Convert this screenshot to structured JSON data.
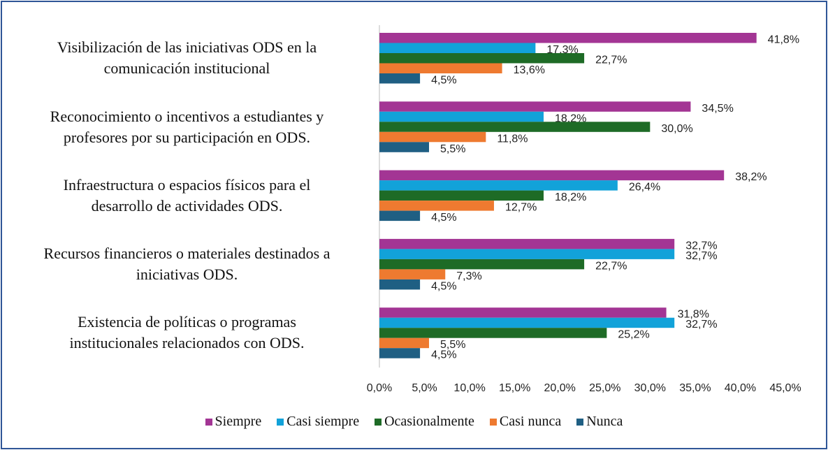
{
  "chart_data": {
    "type": "hbar",
    "categories": [
      "Visibilización de las iniciativas ODS en la\ncomunicación institucional",
      "Reconocimiento o incentivos a estudiantes y\nprofesores por su participación en ODS.",
      "Infraestructura o espacios físicos para el\ndesarrollo de actividades ODS.",
      "Recursos financieros o materiales destinados a\niniciativas ODS.",
      "Existencia de políticas o programas\ninstitucionales relacionados con ODS."
    ],
    "series": [
      {
        "name": "Siempre",
        "color": "#a33594",
        "values": [
          41.8,
          34.5,
          38.2,
          32.7,
          31.8
        ],
        "value_labels": [
          "41,8%",
          "34,5%",
          "38,2%",
          "32,7%",
          "31,8%"
        ]
      },
      {
        "name": "Casi siempre",
        "color": "#12a2d9",
        "values": [
          17.3,
          18.2,
          26.4,
          32.7,
          32.7
        ],
        "value_labels": [
          "17,3%",
          "18,2%",
          "26,4%",
          "32,7%",
          "32,7%"
        ]
      },
      {
        "name": "Ocasionalmente",
        "color": "#1e6b26",
        "values": [
          22.7,
          30.0,
          18.2,
          22.7,
          25.2
        ],
        "value_labels": [
          "22,7%",
          "30,0%",
          "18,2%",
          "22,7%",
          "25,2%"
        ]
      },
      {
        "name": "Casi nunca",
        "color": "#ee7a30",
        "values": [
          13.6,
          11.8,
          12.7,
          7.3,
          5.5
        ],
        "value_labels": [
          "13,6%",
          "11,8%",
          "12,7%",
          "7,3%",
          "5,5%"
        ]
      },
      {
        "name": "Nunca",
        "color": "#1f5f83",
        "values": [
          4.5,
          5.5,
          4.5,
          4.5,
          4.5
        ],
        "value_labels": [
          "4,5%",
          "5,5%",
          "4,5%",
          "4,5%",
          "4,5%"
        ]
      }
    ],
    "xlim": [
      0,
      45
    ],
    "xticks": [
      {
        "value": 0,
        "label": "0,0%"
      },
      {
        "value": 5,
        "label": "5,0%"
      },
      {
        "value": 10,
        "label": "10,0%"
      },
      {
        "value": 15,
        "label": "15,0%"
      },
      {
        "value": 20,
        "label": "20,0%"
      },
      {
        "value": 25,
        "label": "25,0%"
      },
      {
        "value": 30,
        "label": "30,0%"
      },
      {
        "value": 35,
        "label": "35,0%"
      },
      {
        "value": 40,
        "label": "40,0%"
      },
      {
        "value": 45,
        "label": "45,0%"
      }
    ],
    "legend": "bottom"
  }
}
